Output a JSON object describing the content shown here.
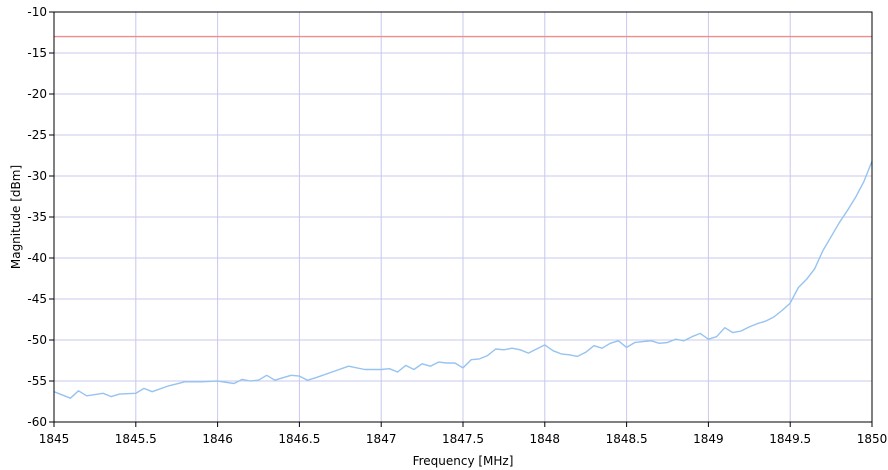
{
  "chart_data": {
    "type": "line",
    "title": "",
    "xlabel": "Frequency [MHz]",
    "ylabel": "Magnitude [dBm]",
    "xlim": [
      1845,
      1850
    ],
    "ylim": [
      -60,
      -10
    ],
    "x_ticks": [
      1845,
      1845.5,
      1846,
      1846.5,
      1847,
      1847.5,
      1848,
      1848.5,
      1849,
      1849.5,
      1850
    ],
    "x_tick_labels": [
      "1845",
      "1845.5",
      "1846",
      "1846.5",
      "1847",
      "1847.5",
      "1848",
      "1848.5",
      "1849",
      "1849.5",
      "1850"
    ],
    "y_ticks": [
      -10,
      -15,
      -20,
      -25,
      -30,
      -35,
      -40,
      -45,
      -50,
      -55,
      -60
    ],
    "y_tick_labels": [
      "-10",
      "-15",
      "-20",
      "-25",
      "-30",
      "-35",
      "-40",
      "-45",
      "-50",
      "-55",
      "-60"
    ],
    "grid": true,
    "colors": {
      "grid": "#c8c8ef",
      "threshold": "#f08c8c",
      "trace": "#96c3f0",
      "axis": "#000000"
    },
    "threshold": {
      "y": -13
    },
    "series": [
      {
        "x": [
          1845,
          1845.1,
          1845.15,
          1845.2,
          1845.3,
          1845.35,
          1845.4,
          1845.5,
          1845.55,
          1845.6,
          1845.7,
          1845.8,
          1845.9,
          1846,
          1846.1,
          1846.15,
          1846.2,
          1846.25,
          1846.3,
          1846.35,
          1846.4,
          1846.45,
          1846.5,
          1846.55,
          1846.6,
          1846.7,
          1846.8,
          1846.9,
          1847,
          1847.05,
          1847.1,
          1847.15,
          1847.2,
          1847.25,
          1847.3,
          1847.35,
          1847.4,
          1847.45,
          1847.5,
          1847.55,
          1847.6,
          1847.65,
          1847.7,
          1847.75,
          1847.8,
          1847.85,
          1847.9,
          1848,
          1848.05,
          1848.1,
          1848.15,
          1848.2,
          1848.25,
          1848.3,
          1848.35,
          1848.4,
          1848.45,
          1848.5,
          1848.55,
          1848.6,
          1848.65,
          1848.7,
          1848.75,
          1848.8,
          1848.85,
          1848.9,
          1848.95,
          1849,
          1849.05,
          1849.1,
          1849.15,
          1849.2,
          1849.25,
          1849.3,
          1849.35,
          1849.4,
          1849.45,
          1849.5,
          1849.55,
          1849.6,
          1849.65,
          1849.7,
          1849.75,
          1849.8,
          1849.85,
          1849.9,
          1849.95,
          1850
        ],
        "y": [
          -56.3,
          -57.1,
          -56.2,
          -56.8,
          -56.5,
          -56.9,
          -56.6,
          -56.5,
          -55.9,
          -56.3,
          -55.6,
          -55.1,
          -55.1,
          -55.0,
          -55.3,
          -54.8,
          -55.0,
          -54.9,
          -54.3,
          -54.9,
          -54.6,
          -54.3,
          -54.4,
          -54.9,
          -54.6,
          -53.9,
          -53.2,
          -53.6,
          -53.6,
          -53.5,
          -53.9,
          -53.1,
          -53.6,
          -52.9,
          -53.2,
          -52.7,
          -52.8,
          -52.8,
          -53.4,
          -52.4,
          -52.3,
          -51.9,
          -51.1,
          -51.2,
          -51.0,
          -51.2,
          -51.6,
          -50.6,
          -51.3,
          -51.7,
          -51.8,
          -52.0,
          -51.5,
          -50.7,
          -51.0,
          -50.4,
          -50.1,
          -50.9,
          -50.3,
          -50.2,
          -50.1,
          -50.4,
          -50.3,
          -49.9,
          -50.1,
          -49.6,
          -49.2,
          -49.9,
          -49.6,
          -48.5,
          -49.1,
          -48.9,
          -48.4,
          -48.0,
          -47.7,
          -47.2,
          -46.4,
          -45.5,
          -43.6,
          -42.6,
          -41.3,
          -39.1,
          -37.4,
          -35.7,
          -34.2,
          -32.6,
          -30.7,
          -28.2
        ]
      }
    ]
  }
}
